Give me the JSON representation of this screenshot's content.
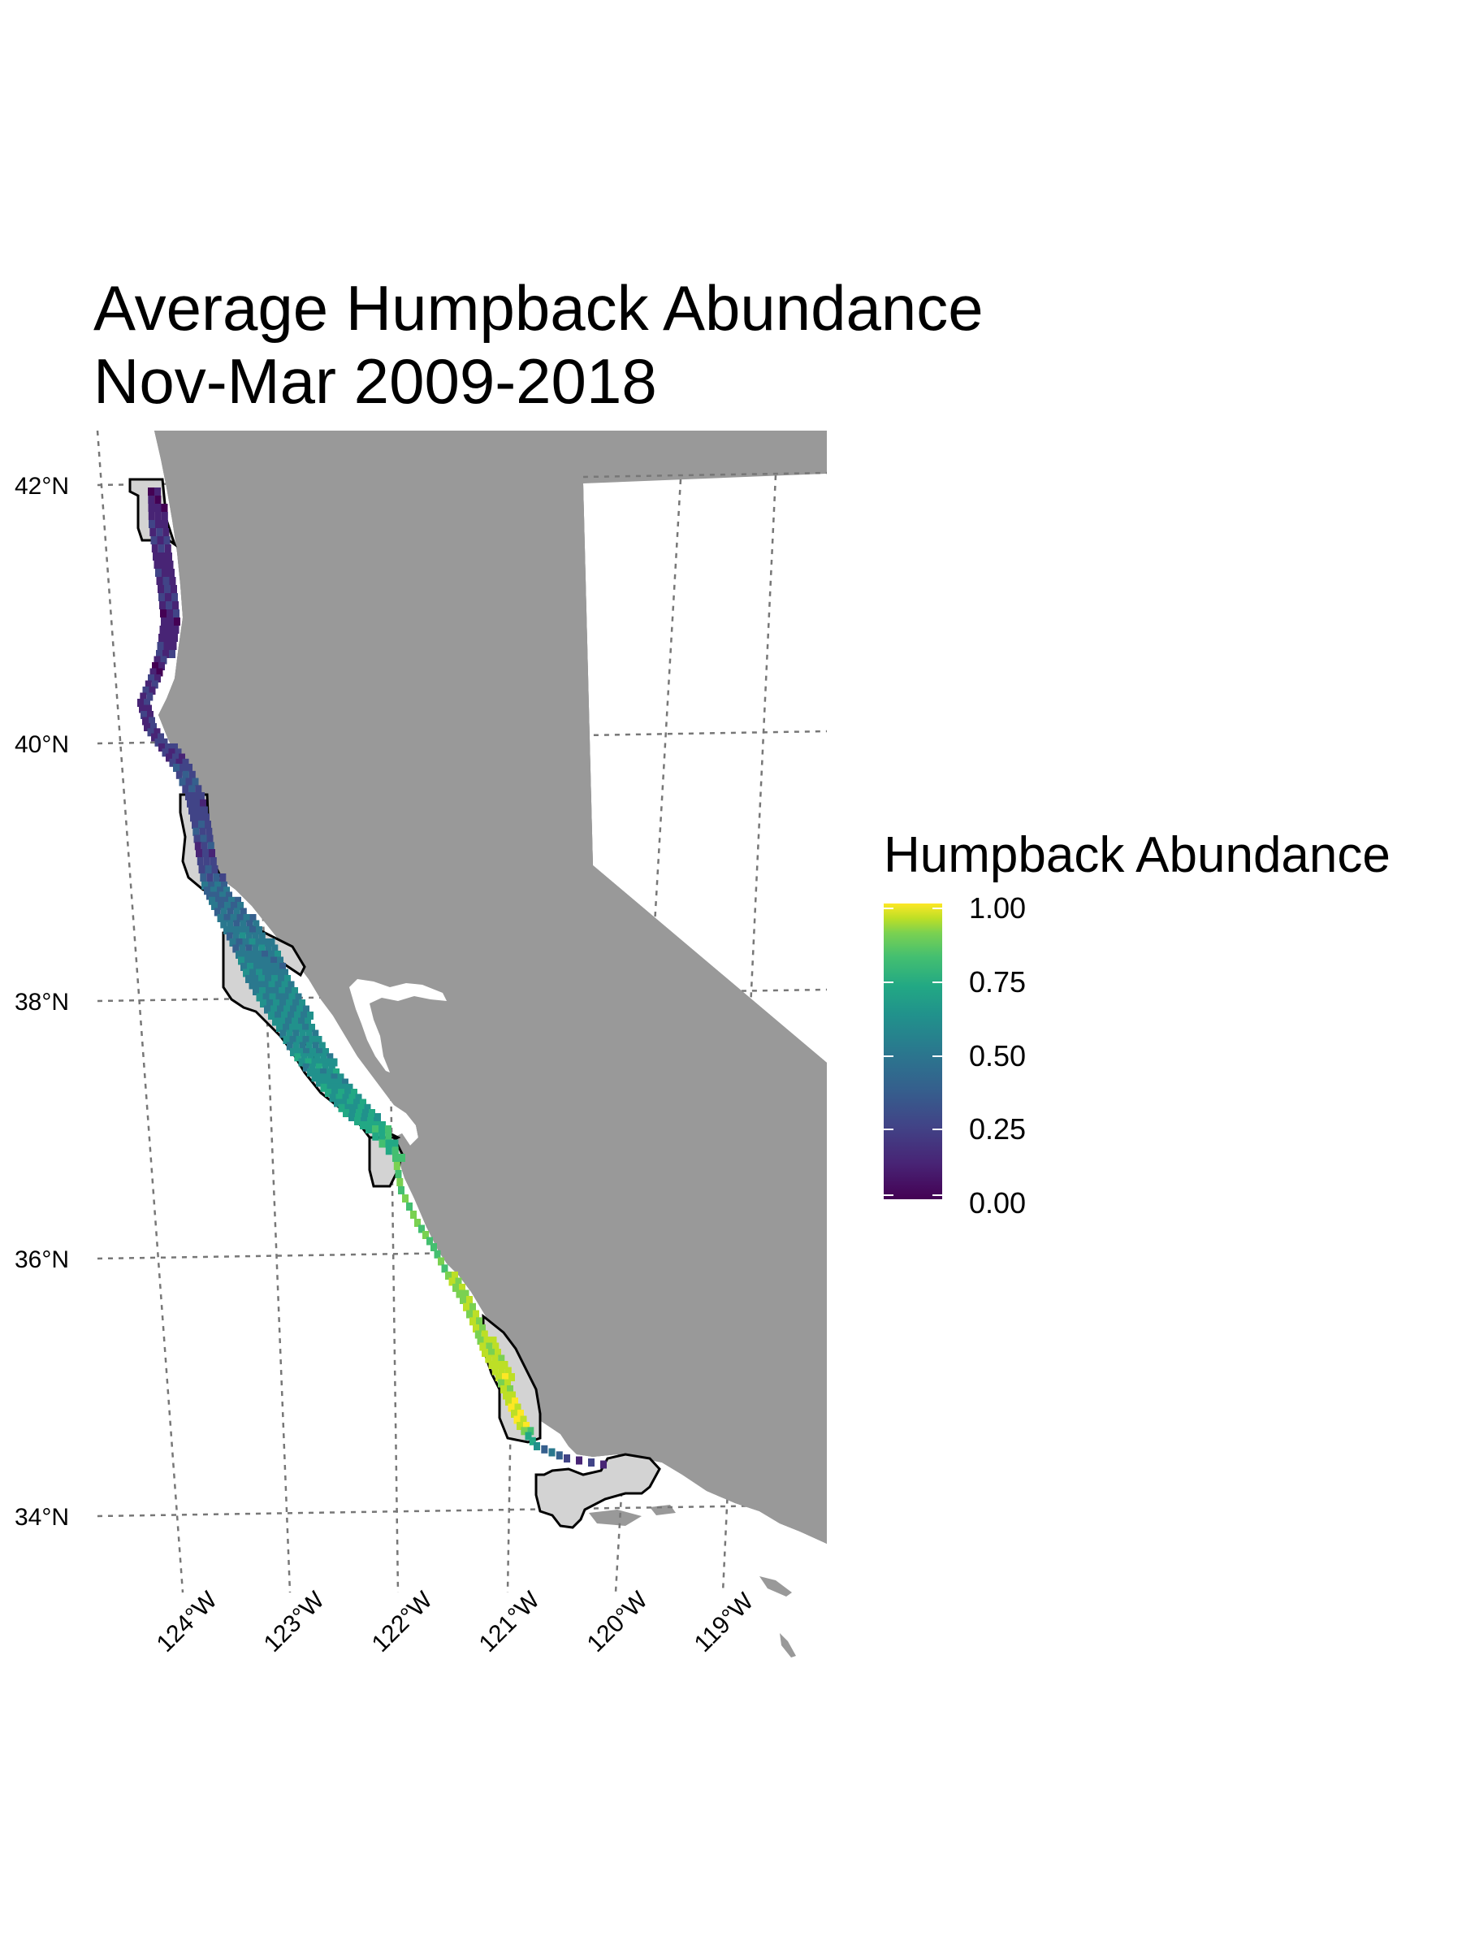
{
  "map": {
    "title_line1": "Average Humpback Abundance",
    "title_line2": "Nov-Mar 2009-2018",
    "lat_labels": [
      "42°N",
      "40°N",
      "38°N",
      "36°N",
      "34°N"
    ],
    "lon_labels": [
      "124°W",
      "123°W",
      "122°W",
      "121°W",
      "120°W",
      "119°W"
    ],
    "legend": {
      "title": "Humpback Abundance",
      "ticks": [
        "1.00",
        "0.75",
        "0.50",
        "0.25",
        "0.00"
      ]
    },
    "colors": {
      "land": "#999999",
      "closure_fill": "#d3d3d3",
      "graticule": "#777777",
      "viridis_low": "#440154",
      "viridis_high": "#fde725"
    }
  }
}
